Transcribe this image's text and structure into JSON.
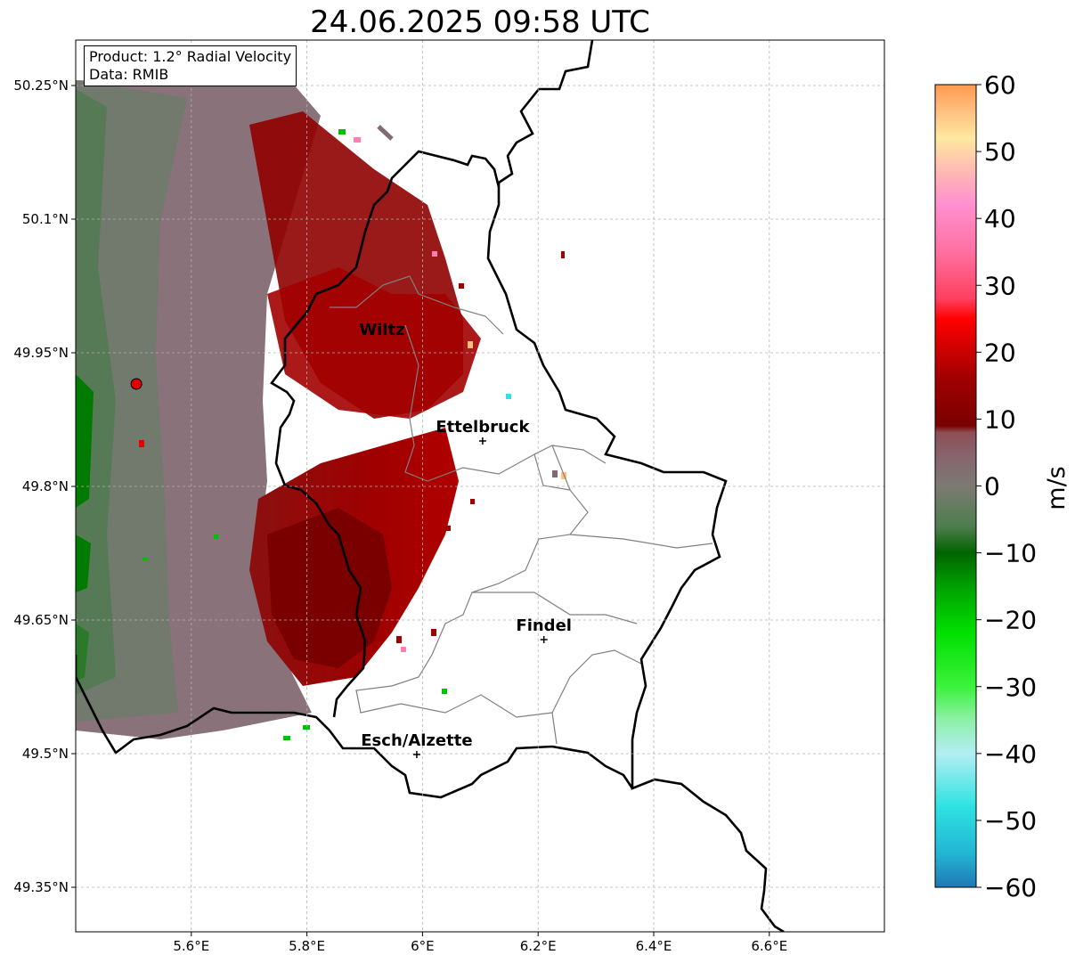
{
  "title": "24.06.2025 09:58 UTC",
  "info": {
    "product": "Product: 1.2° Radial Velocity",
    "data": "Data: RMIB"
  },
  "map": {
    "lon_range": [
      5.4,
      6.8
    ],
    "lat_range": [
      49.3,
      50.3
    ],
    "lon_ticks": [
      {
        "v": 5.6,
        "label": "5.6°E"
      },
      {
        "v": 5.8,
        "label": "5.8°E"
      },
      {
        "v": 6.0,
        "label": "6°E"
      },
      {
        "v": 6.2,
        "label": "6.2°E"
      },
      {
        "v": 6.4,
        "label": "6.4°E"
      },
      {
        "v": 6.6,
        "label": "6.6°E"
      }
    ],
    "lat_ticks": [
      {
        "v": 50.25,
        "label": "50.25°N"
      },
      {
        "v": 50.1,
        "label": "50.1°N"
      },
      {
        "v": 49.95,
        "label": "49.95°N"
      },
      {
        "v": 49.8,
        "label": "49.8°N"
      },
      {
        "v": 49.65,
        "label": "49.65°N"
      },
      {
        "v": 49.5,
        "label": "49.5°N"
      },
      {
        "v": 49.35,
        "label": "49.35°N"
      }
    ],
    "grid": true,
    "radar_site": {
      "lon": 5.505,
      "lat": 49.915
    },
    "cities": [
      {
        "name": "Wiltz",
        "lon": 5.93,
        "lat": 49.97,
        "marker": false
      },
      {
        "name": "Ettelbruck",
        "lon": 6.104,
        "lat": 49.851,
        "marker": true
      },
      {
        "name": "Findel",
        "lon": 6.21,
        "lat": 49.628,
        "marker": true
      },
      {
        "name": "Esch/Alzette",
        "lon": 5.99,
        "lat": 49.499,
        "marker": true
      }
    ]
  },
  "colorbar": {
    "label": "m/s",
    "min": -60,
    "max": 60,
    "ticks": [
      {
        "v": 60,
        "label": "60"
      },
      {
        "v": 50,
        "label": "50"
      },
      {
        "v": 40,
        "label": "40"
      },
      {
        "v": 30,
        "label": "30"
      },
      {
        "v": 20,
        "label": "20"
      },
      {
        "v": 10,
        "label": "10"
      },
      {
        "v": 0,
        "label": "0"
      },
      {
        "v": -10,
        "label": "−10"
      },
      {
        "v": -20,
        "label": "−20"
      },
      {
        "v": -30,
        "label": "−30"
      },
      {
        "v": -40,
        "label": "−40"
      },
      {
        "v": -50,
        "label": "−50"
      },
      {
        "v": -60,
        "label": "−60"
      }
    ],
    "stops": [
      {
        "v": -60,
        "color": "#1f78b4"
      },
      {
        "v": -55,
        "color": "#23b5d3"
      },
      {
        "v": -48,
        "color": "#2de2e2"
      },
      {
        "v": -40,
        "color": "#b3eef2"
      },
      {
        "v": -35,
        "color": "#8ef0a8"
      },
      {
        "v": -30,
        "color": "#3cf23c"
      },
      {
        "v": -22,
        "color": "#00e000"
      },
      {
        "v": -15,
        "color": "#00a000"
      },
      {
        "v": -10,
        "color": "#006400"
      },
      {
        "v": -6,
        "color": "#4e7d4e"
      },
      {
        "v": 0,
        "color": "#7d7a72"
      },
      {
        "v": 4,
        "color": "#866670"
      },
      {
        "v": 8,
        "color": "#8e4f55"
      },
      {
        "v": 9,
        "color": "#7a0000"
      },
      {
        "v": 16,
        "color": "#a00000"
      },
      {
        "v": 25,
        "color": "#ff0000"
      },
      {
        "v": 28,
        "color": "#ff4060"
      },
      {
        "v": 35,
        "color": "#ff70a0"
      },
      {
        "v": 42,
        "color": "#ff90d0"
      },
      {
        "v": 46,
        "color": "#ffb0b8"
      },
      {
        "v": 52,
        "color": "#ffe8a0"
      },
      {
        "v": 56,
        "color": "#ffc080"
      },
      {
        "v": 60,
        "color": "#ff9a50"
      }
    ]
  }
}
